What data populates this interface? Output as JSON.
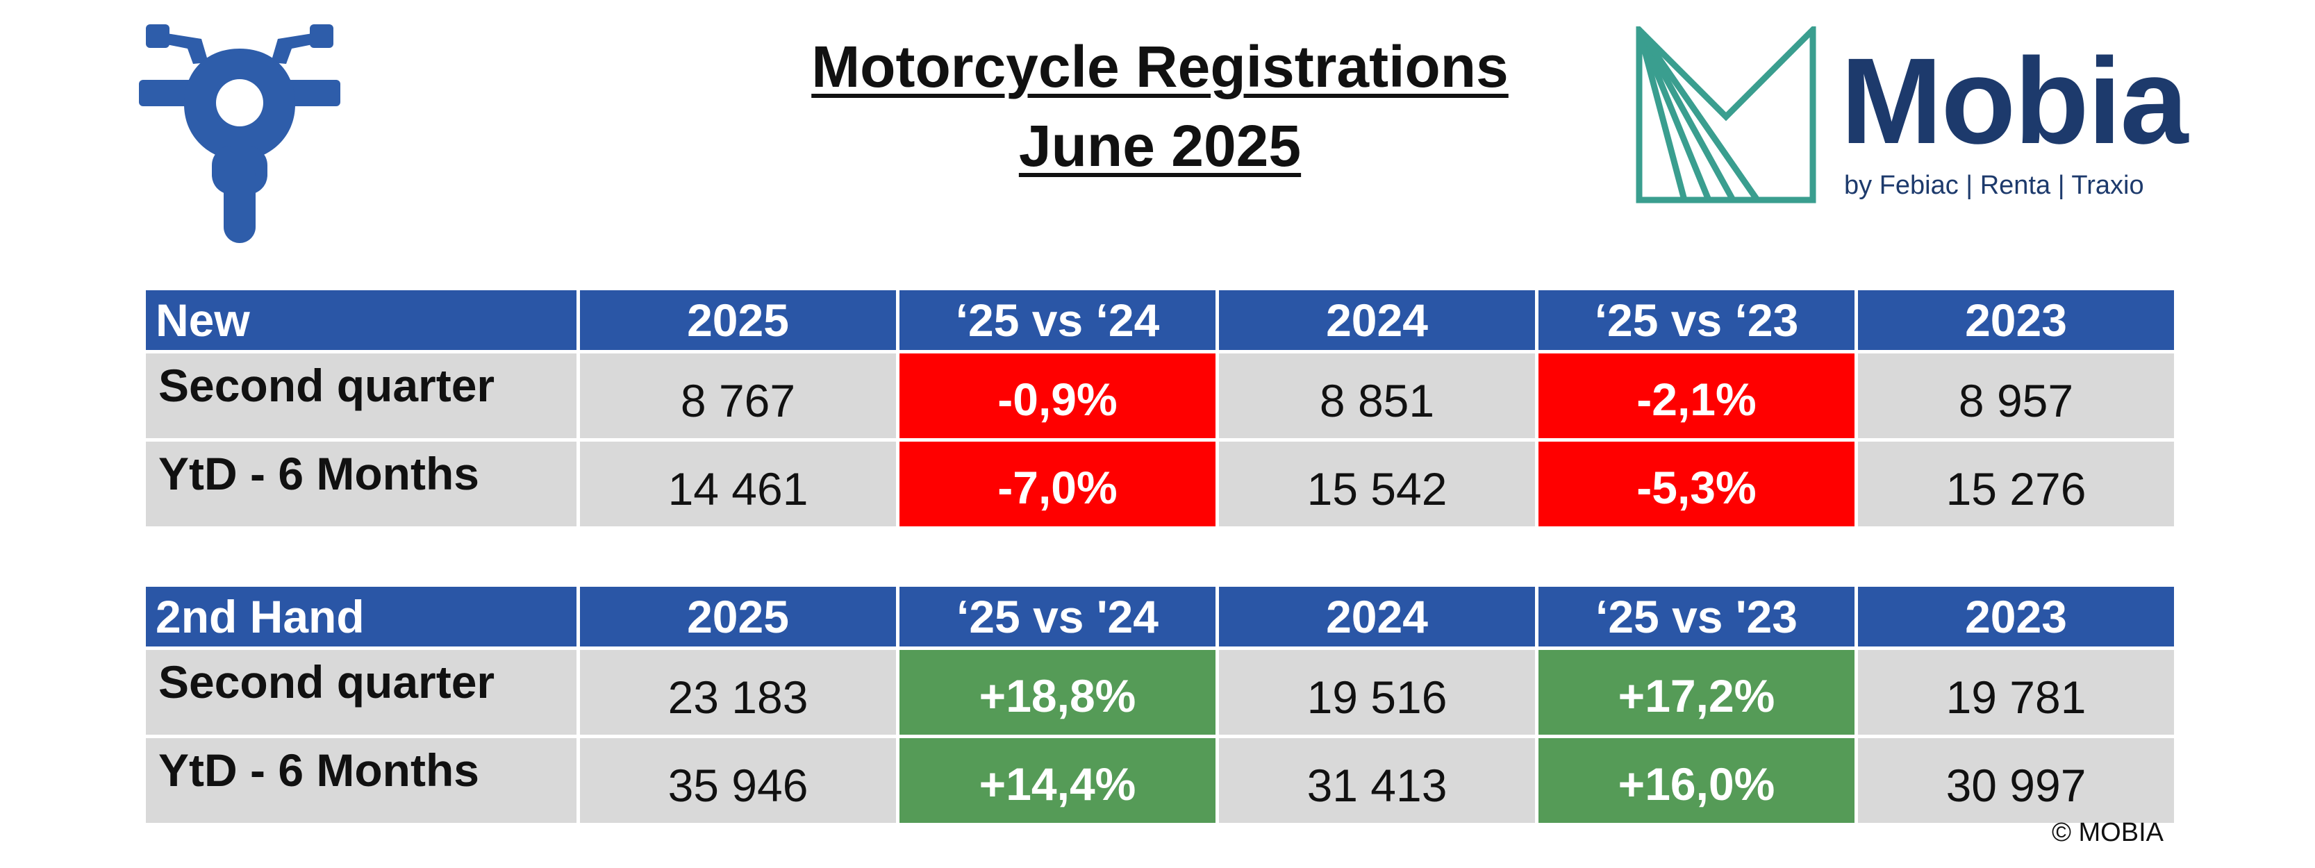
{
  "title": {
    "line1": "Motorcycle Registrations",
    "line2": "June 2025"
  },
  "icons": {
    "left": "motorcycle-icon",
    "logo": "mobia-m-logo-icon"
  },
  "brand": {
    "name": "Mobia",
    "subtitle": "by Febiac | Renta | Traxio"
  },
  "colors": {
    "header": "#2a56a6",
    "negative": "#ff0000",
    "positive": "#559b57",
    "cell": "#d9d9d9",
    "brand": "#1d3a6c",
    "logo_mark": "#3a9e8f",
    "icon": "#2e5daa"
  },
  "tables": {
    "new": {
      "headers": [
        "New",
        "2025",
        "‘25 vs ‘24",
        "2024",
        "‘25 vs ‘23",
        "2023"
      ],
      "rows": [
        {
          "label": "Second quarter",
          "v2025": "8 767",
          "d24": "-0,9%",
          "v2024": "8 851",
          "d23": "-2,1%",
          "v2023": "8 957"
        },
        {
          "label": "YtD - 6 Months",
          "v2025": "14 461",
          "d24": "-7,0%",
          "v2024": "15 542",
          "d23": "-5,3%",
          "v2023": "15 276"
        }
      ]
    },
    "second_hand": {
      "headers": [
        "2nd Hand",
        "2025",
        "‘25 vs '24",
        "2024",
        "‘25 vs '23",
        "2023"
      ],
      "rows": [
        {
          "label": "Second quarter",
          "v2025": "23 183",
          "d24": "+18,8%",
          "v2024": "19 516",
          "d23": "+17,2%",
          "v2023": "19 781"
        },
        {
          "label": "YtD - 6 Months",
          "v2025": "35 946",
          "d24": "+14,4%",
          "v2024": "31 413",
          "d23": "+16,0%",
          "v2023": "30 997"
        }
      ]
    }
  },
  "copyright": "© MOBIA"
}
